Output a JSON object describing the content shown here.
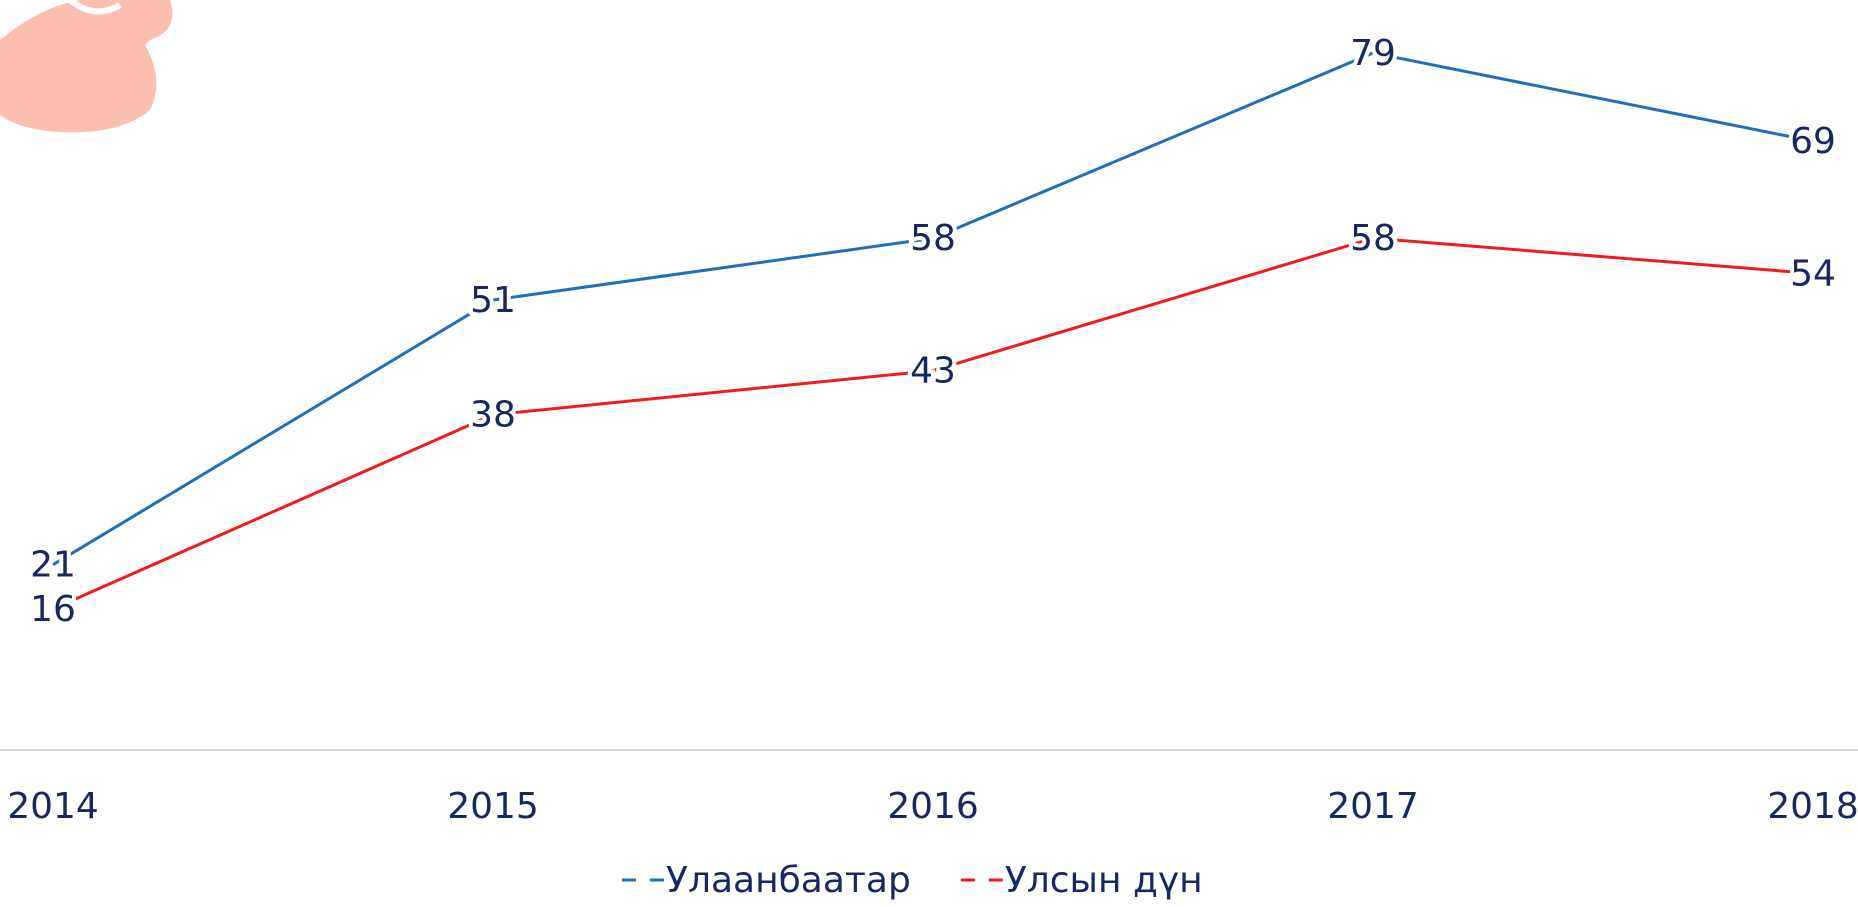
{
  "chart_data": {
    "type": "line",
    "categories": [
      "2014",
      "2015",
      "2016",
      "2017",
      "2018"
    ],
    "series": [
      {
        "name": "Улаанбаатар",
        "color": "#1f70b8",
        "values": [
          21,
          51,
          58,
          79,
          69
        ]
      },
      {
        "name": "Улсын дүн",
        "color": "#ee1c1c",
        "values": [
          16,
          38,
          43,
          58,
          54
        ]
      }
    ],
    "ylim": [
      0,
      85
    ],
    "legend": "bottom"
  }
}
